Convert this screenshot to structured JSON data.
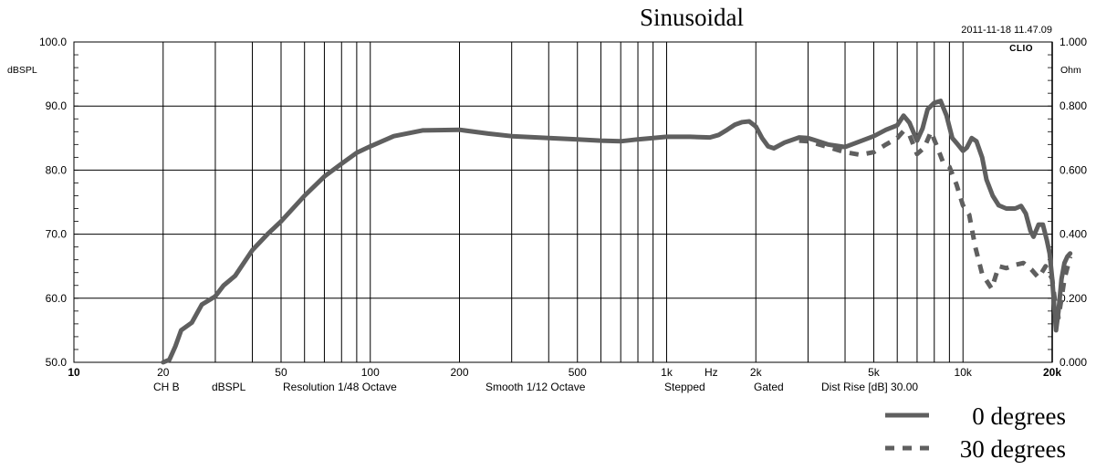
{
  "chart_data": {
    "type": "line",
    "title": "Sinusoidal",
    "timestamp": "2011-11-18 11.47.09",
    "brand": "CLIO",
    "xlabel": "Hz",
    "ylabel": "dBSPL",
    "y2label": "Ohm",
    "x_scale": "log",
    "xlim": [
      10,
      20000
    ],
    "ylim": [
      50,
      100
    ],
    "y2lim": [
      0,
      1
    ],
    "grid": true,
    "x_ticks": [
      "10",
      "20",
      "50",
      "100",
      "200",
      "500",
      "1k",
      "Hz",
      "2k",
      "5k",
      "10k",
      "20k"
    ],
    "y_ticks": [
      "100.0",
      "90.0",
      "80.0",
      "70.0",
      "60.0",
      "50.0"
    ],
    "y2_ticks": [
      "1.000",
      "0.800",
      "0.600",
      "0.400",
      "0.200",
      "0.000"
    ],
    "footer": [
      "CH B",
      "dBSPL",
      "Resolution 1/48 Octave",
      "Smooth 1/12 Octave",
      "Stepped",
      "Gated",
      "Dist Rise [dB] 30.00"
    ],
    "legend_position": "bottom-right",
    "series": [
      {
        "name": "0 degrees",
        "style": "solid",
        "points": [
          [
            20,
            50
          ],
          [
            21,
            50.4
          ],
          [
            22,
            52.5
          ],
          [
            23,
            55
          ],
          [
            25,
            56.2
          ],
          [
            27,
            59
          ],
          [
            30,
            60.3
          ],
          [
            32,
            62
          ],
          [
            35,
            63.5
          ],
          [
            40,
            67.5
          ],
          [
            45,
            70
          ],
          [
            50,
            72
          ],
          [
            60,
            76
          ],
          [
            70,
            79
          ],
          [
            80,
            81
          ],
          [
            90,
            82.7
          ],
          [
            100,
            83.7
          ],
          [
            120,
            85.3
          ],
          [
            150,
            86.2
          ],
          [
            200,
            86.3
          ],
          [
            250,
            85.7
          ],
          [
            300,
            85.3
          ],
          [
            400,
            85
          ],
          [
            500,
            84.8
          ],
          [
            600,
            84.6
          ],
          [
            700,
            84.5
          ],
          [
            800,
            84.8
          ],
          [
            900,
            85
          ],
          [
            1000,
            85.2
          ],
          [
            1200,
            85.2
          ],
          [
            1400,
            85.1
          ],
          [
            1500,
            85.5
          ],
          [
            1600,
            86.3
          ],
          [
            1700,
            87.1
          ],
          [
            1800,
            87.5
          ],
          [
            1900,
            87.6
          ],
          [
            2000,
            86.8
          ],
          [
            2100,
            85
          ],
          [
            2200,
            83.7
          ],
          [
            2300,
            83.4
          ],
          [
            2500,
            84.3
          ],
          [
            2800,
            85.1
          ],
          [
            3000,
            85
          ],
          [
            3200,
            84.6
          ],
          [
            3500,
            84
          ],
          [
            4000,
            83.6
          ],
          [
            4500,
            84.5
          ],
          [
            5000,
            85.3
          ],
          [
            5500,
            86.3
          ],
          [
            6000,
            87
          ],
          [
            6300,
            88.5
          ],
          [
            6600,
            87.4
          ],
          [
            7000,
            84.6
          ],
          [
            7300,
            86.5
          ],
          [
            7600,
            89.5
          ],
          [
            8000,
            90.5
          ],
          [
            8400,
            90.8
          ],
          [
            8800,
            88.5
          ],
          [
            9200,
            85
          ],
          [
            9600,
            84
          ],
          [
            10000,
            83
          ],
          [
            10300,
            83.5
          ],
          [
            10700,
            85
          ],
          [
            11100,
            84.5
          ],
          [
            11600,
            82
          ],
          [
            12000,
            78.5
          ],
          [
            12600,
            76
          ],
          [
            13200,
            74.5
          ],
          [
            14000,
            74
          ],
          [
            15000,
            74
          ],
          [
            15700,
            74.4
          ],
          [
            16300,
            73.2
          ],
          [
            16900,
            70.5
          ],
          [
            17300,
            69.6
          ],
          [
            18000,
            71.5
          ],
          [
            18600,
            71.5
          ],
          [
            19200,
            69
          ],
          [
            19600,
            67
          ],
          [
            20000,
            63
          ],
          [
            20300,
            59
          ],
          [
            20600,
            55
          ],
          [
            21000,
            58
          ],
          [
            21500,
            63
          ],
          [
            22000,
            65.5
          ],
          [
            22500,
            66.5
          ],
          [
            23000,
            67
          ]
        ]
      },
      {
        "name": "30 degrees",
        "style": "dashed",
        "points": [
          [
            2800,
            84.6
          ],
          [
            3000,
            84.5
          ],
          [
            3500,
            83.6
          ],
          [
            4000,
            82.8
          ],
          [
            4500,
            82.4
          ],
          [
            5000,
            82.8
          ],
          [
            5500,
            84
          ],
          [
            6000,
            85
          ],
          [
            6300,
            86.1
          ],
          [
            6600,
            85.5
          ],
          [
            7000,
            82.5
          ],
          [
            7400,
            83.5
          ],
          [
            7800,
            86
          ],
          [
            8200,
            83.5
          ],
          [
            8600,
            81
          ],
          [
            9000,
            80.5
          ],
          [
            9500,
            77.8
          ],
          [
            10000,
            74.5
          ],
          [
            10500,
            73
          ],
          [
            11000,
            68
          ],
          [
            11600,
            63.8
          ],
          [
            12500,
            61.5
          ],
          [
            13200,
            65
          ],
          [
            14000,
            64.7
          ],
          [
            15000,
            65.2
          ],
          [
            16000,
            65.5
          ],
          [
            17000,
            64.5
          ],
          [
            18000,
            63.2
          ],
          [
            19000,
            65
          ],
          [
            20000,
            63
          ],
          [
            20500,
            59
          ],
          [
            21000,
            57
          ],
          [
            21500,
            60
          ],
          [
            22000,
            63
          ],
          [
            23000,
            66.5
          ]
        ]
      }
    ]
  }
}
